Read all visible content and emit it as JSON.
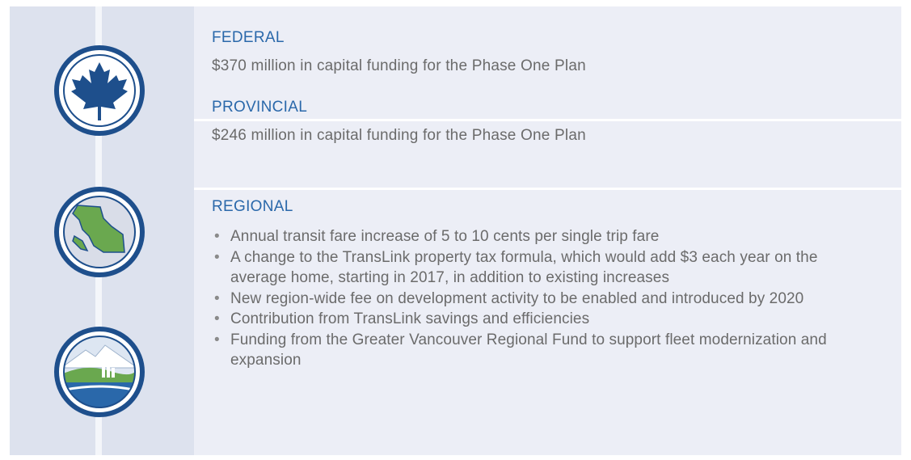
{
  "sections": [
    {
      "heading": "FEDERAL",
      "text": "$370 million in capital funding for the Phase One Plan"
    },
    {
      "heading": "PROVINCIAL",
      "text": "$246 million in capital funding for the Phase One Plan"
    },
    {
      "heading": "REGIONAL",
      "bullets": [
        "Annual transit fare increase of 5 to 10 cents per single trip fare",
        "A change to the TransLink property tax formula, which would add $3 each year on the average home, starting in 2017, in addition to existing increases",
        "New region-wide fee on development activity to be enabled and introduced by 2020",
        "Contribution from TransLink savings and efficiencies",
        "Funding from the Greater Vancouver Regional Fund to support fleet modernization and expansion"
      ]
    }
  ]
}
